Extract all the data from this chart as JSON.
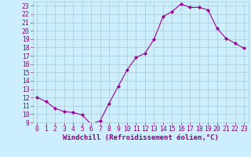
{
  "x": [
    0,
    1,
    2,
    3,
    4,
    5,
    6,
    7,
    8,
    9,
    10,
    11,
    12,
    13,
    14,
    15,
    16,
    17,
    18,
    19,
    20,
    21,
    22,
    23
  ],
  "y": [
    12,
    11.5,
    10.7,
    10.3,
    10.2,
    9.9,
    8.8,
    9.2,
    11.3,
    13.3,
    15.3,
    16.8,
    17.3,
    19.0,
    21.7,
    22.3,
    23.2,
    22.8,
    22.8,
    22.5,
    20.3,
    19.1,
    18.5,
    17.9
  ],
  "line_color": "#990099",
  "marker": "D",
  "marker_size": 2.0,
  "bg_color": "#cceeff",
  "grid_color": "#aacccc",
  "xlabel": "Windchill (Refroidissement éolien,°C)",
  "ylim": [
    9,
    23.5
  ],
  "xlim": [
    -0.5,
    23.5
  ],
  "yticks": [
    9,
    10,
    11,
    12,
    13,
    14,
    15,
    16,
    17,
    18,
    19,
    20,
    21,
    22,
    23
  ],
  "xticks": [
    0,
    1,
    2,
    3,
    4,
    5,
    6,
    7,
    8,
    9,
    10,
    11,
    12,
    13,
    14,
    15,
    16,
    17,
    18,
    19,
    20,
    21,
    22,
    23
  ],
  "tick_color": "#880088",
  "xlabel_color": "#880088",
  "label_fontsize": 6.5,
  "tick_fontsize": 5.8
}
